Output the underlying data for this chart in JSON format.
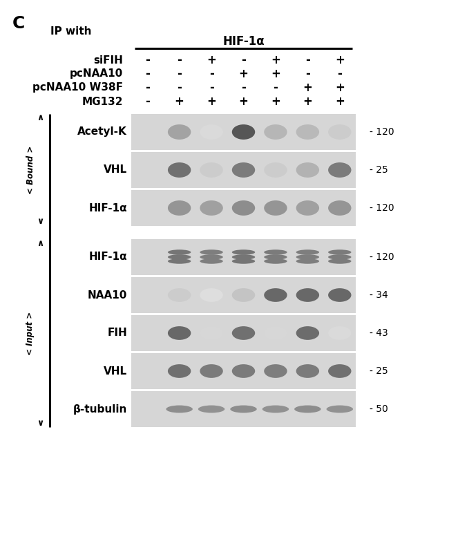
{
  "title_label": "C",
  "ip_label": "IP with",
  "hif_label": "HIF-1α",
  "row_labels": [
    "siFIH",
    "pcNAA10",
    "pcNAA10 W38F",
    "MG132"
  ],
  "col_signs": [
    [
      "-",
      "-",
      "+",
      "-",
      "+",
      "-",
      "+"
    ],
    [
      "-",
      "-",
      "-",
      "+",
      "+",
      "-",
      "-"
    ],
    [
      "-",
      "-",
      "-",
      "-",
      "-",
      "+",
      "+"
    ],
    [
      "-",
      "+",
      "+",
      "+",
      "+",
      "+",
      "+"
    ]
  ],
  "bound_blots": [
    "Acetyl-K",
    "VHL",
    "HIF-1α"
  ],
  "input_blots": [
    "HIF-1α",
    "NAA10",
    "FIH",
    "VHL",
    "β-tubulin"
  ],
  "bound_mw": [
    "120",
    "25",
    "120"
  ],
  "input_mw": [
    "120",
    "34",
    "43",
    "25",
    "50"
  ],
  "bound_intensities": [
    [
      0.0,
      0.5,
      0.2,
      0.92,
      0.4,
      0.38,
      0.28
    ],
    [
      0.0,
      0.78,
      0.28,
      0.72,
      0.28,
      0.42,
      0.72
    ],
    [
      0.0,
      0.58,
      0.52,
      0.62,
      0.58,
      0.52,
      0.58
    ]
  ],
  "input_intensities": [
    [
      0.0,
      0.75,
      0.7,
      0.75,
      0.72,
      0.7,
      0.72
    ],
    [
      0.0,
      0.28,
      0.18,
      0.32,
      0.82,
      0.82,
      0.82
    ],
    [
      0.0,
      0.82,
      0.22,
      0.78,
      0.22,
      0.8,
      0.2
    ],
    [
      0.0,
      0.78,
      0.72,
      0.72,
      0.7,
      0.72,
      0.78
    ],
    [
      0.0,
      0.62,
      0.6,
      0.62,
      0.6,
      0.62,
      0.6
    ]
  ],
  "blot_bg": "#d6d6d6",
  "blot_gap_color": "#f0f0f0"
}
